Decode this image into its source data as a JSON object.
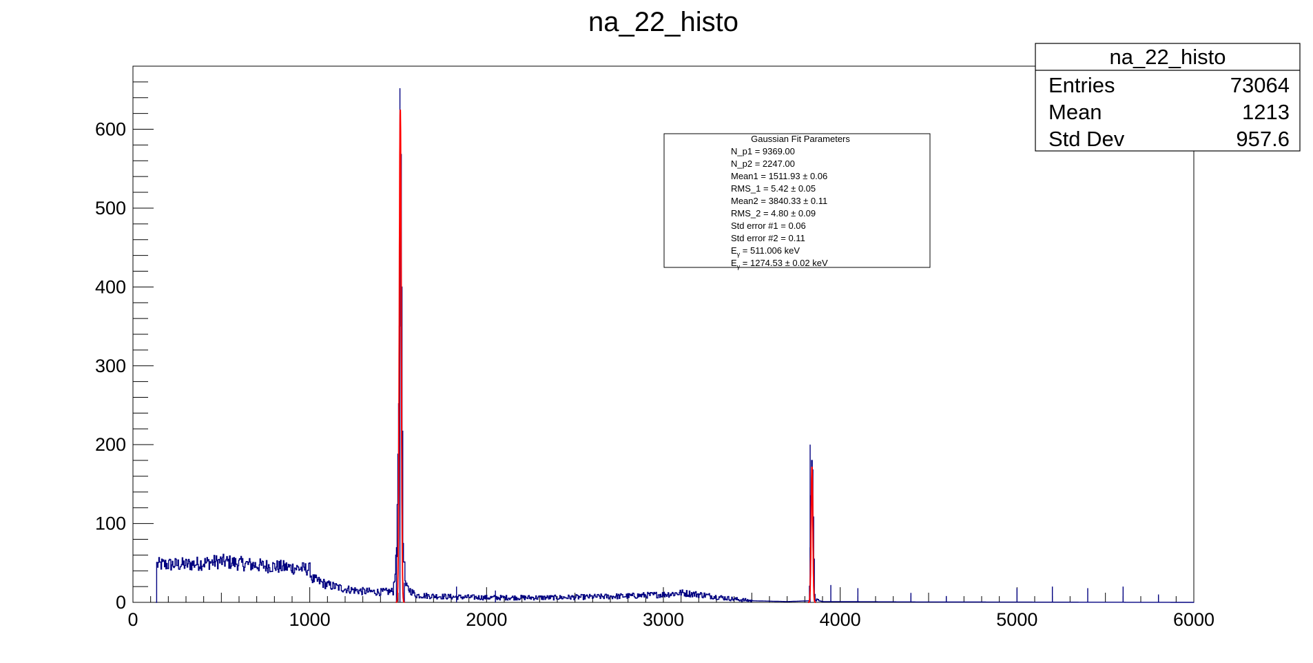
{
  "chart_data": {
    "type": "histogram",
    "title": "na_22_histo",
    "xlim": [
      0,
      6000
    ],
    "ylim": [
      0,
      680
    ],
    "x_ticks": [
      0,
      1000,
      2000,
      3000,
      4000,
      5000,
      6000
    ],
    "y_ticks": [
      0,
      100,
      200,
      300,
      400,
      500,
      600
    ],
    "grid": false,
    "series": [
      {
        "kind": "histogram",
        "color": "#000080",
        "envelope": [
          [
            130,
            0
          ],
          [
            130,
            48
          ],
          [
            300,
            48
          ],
          [
            500,
            52
          ],
          [
            700,
            47
          ],
          [
            900,
            44
          ],
          [
            1000,
            42
          ],
          [
            1010,
            30
          ],
          [
            1100,
            22
          ],
          [
            1200,
            17
          ],
          [
            1300,
            14
          ],
          [
            1400,
            13
          ],
          [
            1470,
            14
          ],
          [
            1490,
            60
          ],
          [
            1505,
            300
          ],
          [
            1512,
            652
          ],
          [
            1518,
            400
          ],
          [
            1525,
            80
          ],
          [
            1540,
            20
          ],
          [
            1600,
            9
          ],
          [
            1800,
            7
          ],
          [
            2000,
            6
          ],
          [
            2200,
            6
          ],
          [
            2400,
            6
          ],
          [
            2600,
            7
          ],
          [
            2800,
            8
          ],
          [
            3000,
            10
          ],
          [
            3100,
            12
          ],
          [
            3200,
            10
          ],
          [
            3300,
            7
          ],
          [
            3400,
            4
          ],
          [
            3500,
            2
          ],
          [
            3700,
            1
          ],
          [
            3825,
            2
          ],
          [
            3835,
            150
          ],
          [
            3840,
            200
          ],
          [
            3845,
            120
          ],
          [
            3855,
            3
          ],
          [
            3900,
            1
          ],
          [
            4500,
            0.5
          ],
          [
            6000,
            0
          ]
        ],
        "spikes": [
          [
            1490,
            70
          ],
          [
            1510,
            652
          ],
          [
            1535,
            25
          ],
          [
            1830,
            20
          ],
          [
            2050,
            15
          ],
          [
            3830,
            200
          ],
          [
            3947,
            22
          ],
          [
            4100,
            18
          ],
          [
            4400,
            12
          ],
          [
            4600,
            8
          ],
          [
            5000,
            18
          ],
          [
            5200,
            20
          ],
          [
            5400,
            18
          ],
          [
            5600,
            20
          ],
          [
            5800,
            10
          ]
        ]
      },
      {
        "kind": "gaussian-fit",
        "color": "#ff0000",
        "peaks": [
          {
            "mean": 1511.93,
            "sigma": 5.42,
            "amplitude": 625
          },
          {
            "mean": 3840.33,
            "sigma": 4.8,
            "amplitude": 172
          }
        ]
      }
    ],
    "stats_box": {
      "title": "na_22_histo",
      "rows": [
        {
          "label": "Entries",
          "value": "73064"
        },
        {
          "label": "Mean",
          "value": "1213"
        },
        {
          "label": "Std Dev",
          "value": "957.6"
        }
      ]
    },
    "fit_box": {
      "title": "Gaussian Fit Parameters",
      "lines": [
        "N_p1 = 9369.00",
        "N_p2 = 2247.00",
        "Mean1 = 1511.93 ± 0.06",
        "RMS_1 = 5.42 ± 0.05",
        "Mean2 = 3840.33 ± 0.11",
        "RMS_2 = 4.80 ± 0.09",
        "Std error #1 = 0.06",
        "Std error #2 = 0.11"
      ],
      "energy_lines": [
        {
          "symbol": "E",
          "sub": "γ",
          "text": " = 511.006 keV"
        },
        {
          "symbol": "E",
          "sub": "γ",
          "text": " = 1274.53 ± 0.02   keV"
        }
      ]
    }
  }
}
